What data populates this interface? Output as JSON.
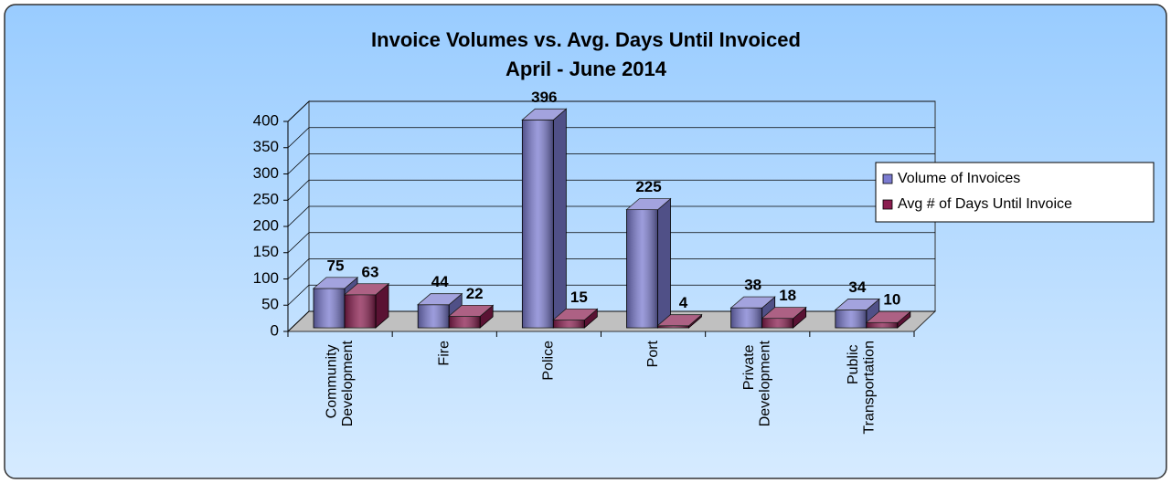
{
  "chart_data": {
    "type": "bar3d",
    "title": "Invoice Volumes vs. Avg. Days Until Invoiced",
    "subtitle": "April - June 2014",
    "categories": [
      "Community Development",
      "Fire",
      "Police",
      "Port",
      "Private Development",
      "Public Transportation"
    ],
    "series": [
      {
        "name": "Volume of Invoices",
        "color": "#7b7bd0",
        "values": [
          75,
          44,
          396,
          225,
          38,
          34
        ]
      },
      {
        "name": "Avg # of Days Until Invoice",
        "color": "#8a1d4f",
        "values": [
          63,
          22,
          15,
          4,
          18,
          10
        ]
      }
    ],
    "ylim": [
      0,
      400
    ],
    "yticks": [
      0,
      50,
      100,
      150,
      200,
      250,
      300,
      350,
      400
    ],
    "grid": true,
    "legend": "right"
  }
}
